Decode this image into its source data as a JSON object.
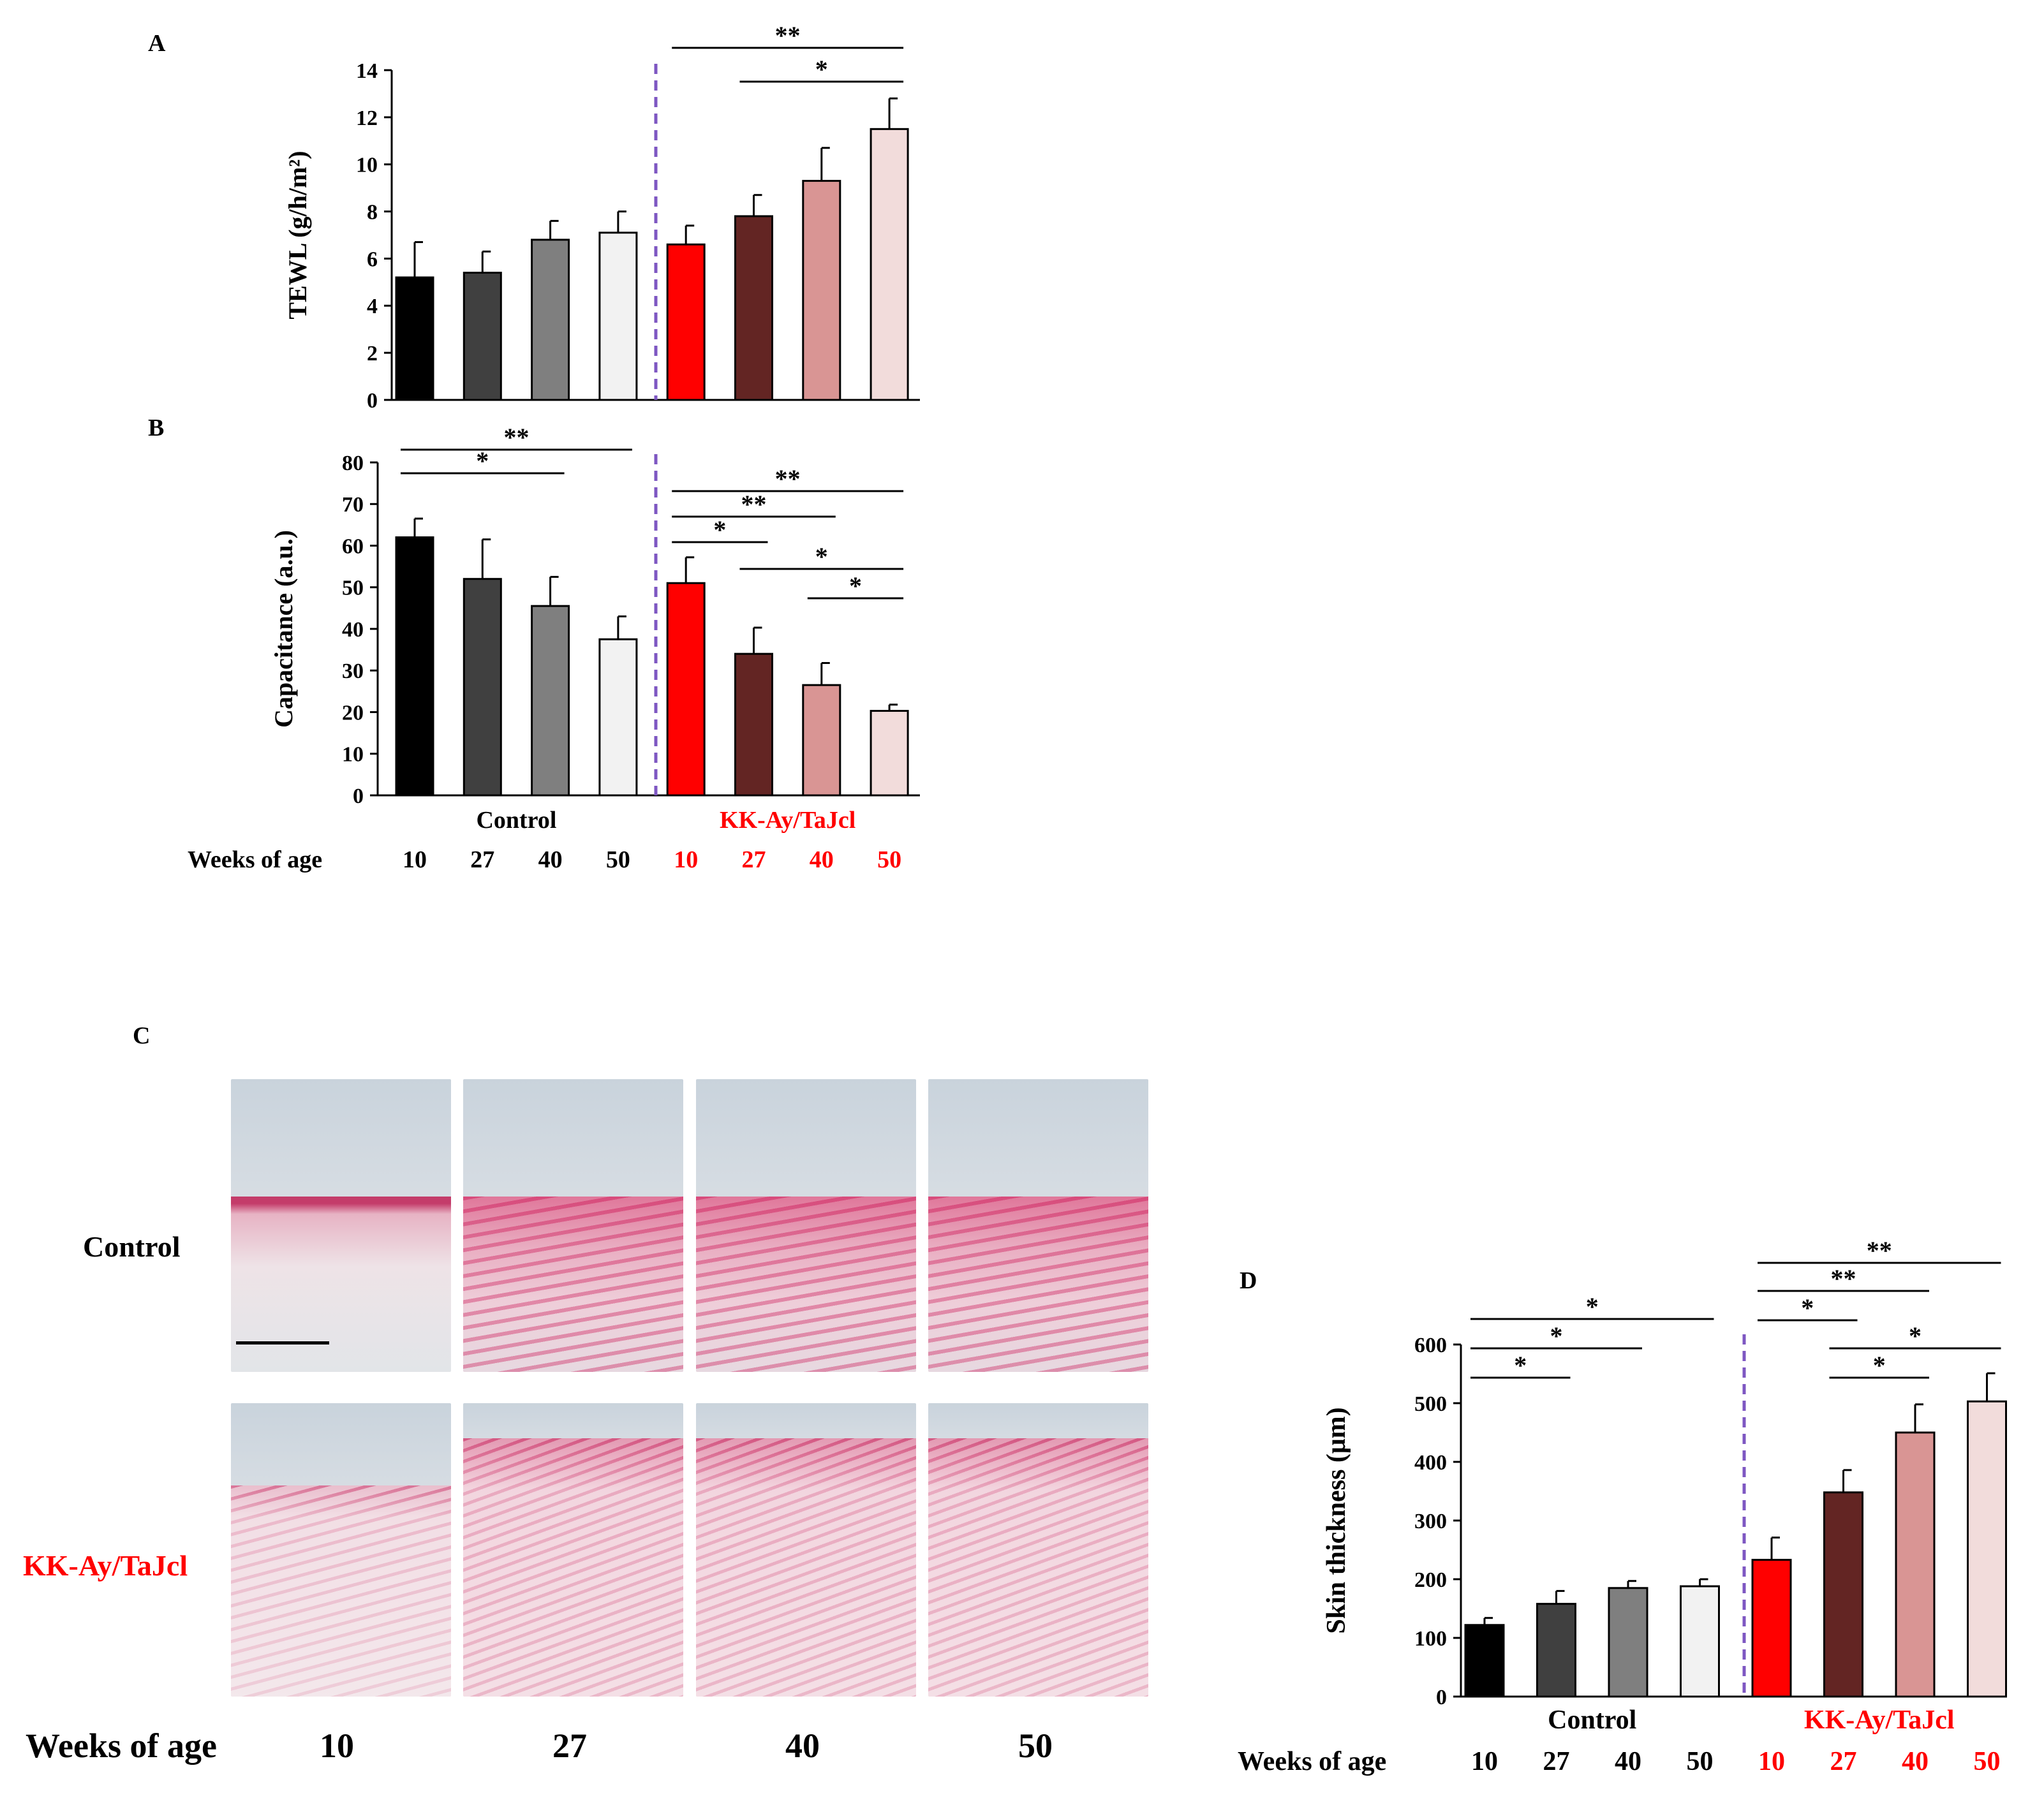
{
  "colors": {
    "bars": [
      "#000000",
      "#404040",
      "#7f7f7f",
      "#f2f2f2",
      "#ff0000",
      "#632523",
      "#d99594",
      "#f2dcdb"
    ],
    "divider": "#7e57c2",
    "kk_label": "#ff0000",
    "text": "#000000"
  },
  "labels": {
    "weeks": [
      "10",
      "27",
      "40",
      "50"
    ],
    "weeks_of_age": "Weeks of age",
    "control": "Control",
    "kk": "KK-Ay/TaJcl"
  },
  "panel_c": {
    "letter": "C",
    "rows": [
      "Control",
      "KK-Ay/TaJcl"
    ],
    "columns": [
      "10",
      "27",
      "40",
      "50"
    ]
  },
  "chart_data": [
    {
      "panel": "A",
      "type": "bar",
      "title": "",
      "ylabel": "TEWL (g/h/m²)",
      "ylim": [
        0,
        14
      ],
      "yticks": [
        0,
        2,
        4,
        6,
        8,
        10,
        12,
        14
      ],
      "group_labels": [
        "Control",
        "KK-Ay/TaJcl"
      ],
      "categories": [
        "10",
        "27",
        "40",
        "50",
        "10",
        "27",
        "40",
        "50"
      ],
      "values": [
        5.2,
        5.4,
        6.8,
        7.1,
        6.6,
        7.8,
        9.3,
        11.5
      ],
      "errors": [
        1.5,
        0.9,
        0.8,
        0.9,
        0.8,
        0.9,
        1.4,
        1.3
      ],
      "significance": [
        {
          "from": 4,
          "to": 7,
          "label": "**"
        },
        {
          "from": 5,
          "to": 7,
          "label": "*"
        }
      ]
    },
    {
      "panel": "B",
      "type": "bar",
      "title": "",
      "ylabel": "Capacitance (a.u.)",
      "ylim": [
        0,
        80
      ],
      "yticks": [
        0,
        10,
        20,
        30,
        40,
        50,
        60,
        70,
        80
      ],
      "group_labels": [
        "Control",
        "KK-Ay/TaJcl"
      ],
      "categories": [
        "10",
        "27",
        "40",
        "50",
        "10",
        "27",
        "40",
        "50"
      ],
      "values": [
        62,
        52,
        45.5,
        37.5,
        51,
        34,
        26.5,
        20.3
      ],
      "errors": [
        4.5,
        9.5,
        7,
        5.5,
        6.2,
        6.3,
        5.3,
        1.5
      ],
      "significance": [
        {
          "from": 0,
          "to": 3,
          "label": "**"
        },
        {
          "from": 0,
          "to": 2,
          "label": "*"
        },
        {
          "from": 4,
          "to": 7,
          "label": "**"
        },
        {
          "from": 4,
          "to": 6,
          "label": "**"
        },
        {
          "from": 4,
          "to": 5,
          "label": "*"
        },
        {
          "from": 5,
          "to": 7,
          "label": "*"
        },
        {
          "from": 6,
          "to": 7,
          "label": "*"
        }
      ]
    },
    {
      "panel": "D",
      "type": "bar",
      "title": "",
      "ylabel": "Skin thickness (μm)",
      "ylim": [
        0,
        600
      ],
      "yticks": [
        0,
        100,
        200,
        300,
        400,
        500,
        600
      ],
      "group_labels": [
        "Control",
        "KK-Ay/TaJcl"
      ],
      "categories": [
        "10",
        "27",
        "40",
        "50",
        "10",
        "27",
        "40",
        "50"
      ],
      "values": [
        122,
        158,
        185,
        188,
        233,
        348,
        450,
        503
      ],
      "errors": [
        12,
        22,
        12,
        12,
        38,
        38,
        48,
        48
      ],
      "significance": [
        {
          "from": 0,
          "to": 3,
          "label": "*"
        },
        {
          "from": 0,
          "to": 2,
          "label": "*"
        },
        {
          "from": 0,
          "to": 1,
          "label": "*"
        },
        {
          "from": 4,
          "to": 7,
          "label": "**"
        },
        {
          "from": 4,
          "to": 6,
          "label": "**"
        },
        {
          "from": 4,
          "to": 5,
          "label": "*"
        },
        {
          "from": 5,
          "to": 7,
          "label": "*"
        },
        {
          "from": 5,
          "to": 6,
          "label": "*"
        }
      ]
    }
  ]
}
